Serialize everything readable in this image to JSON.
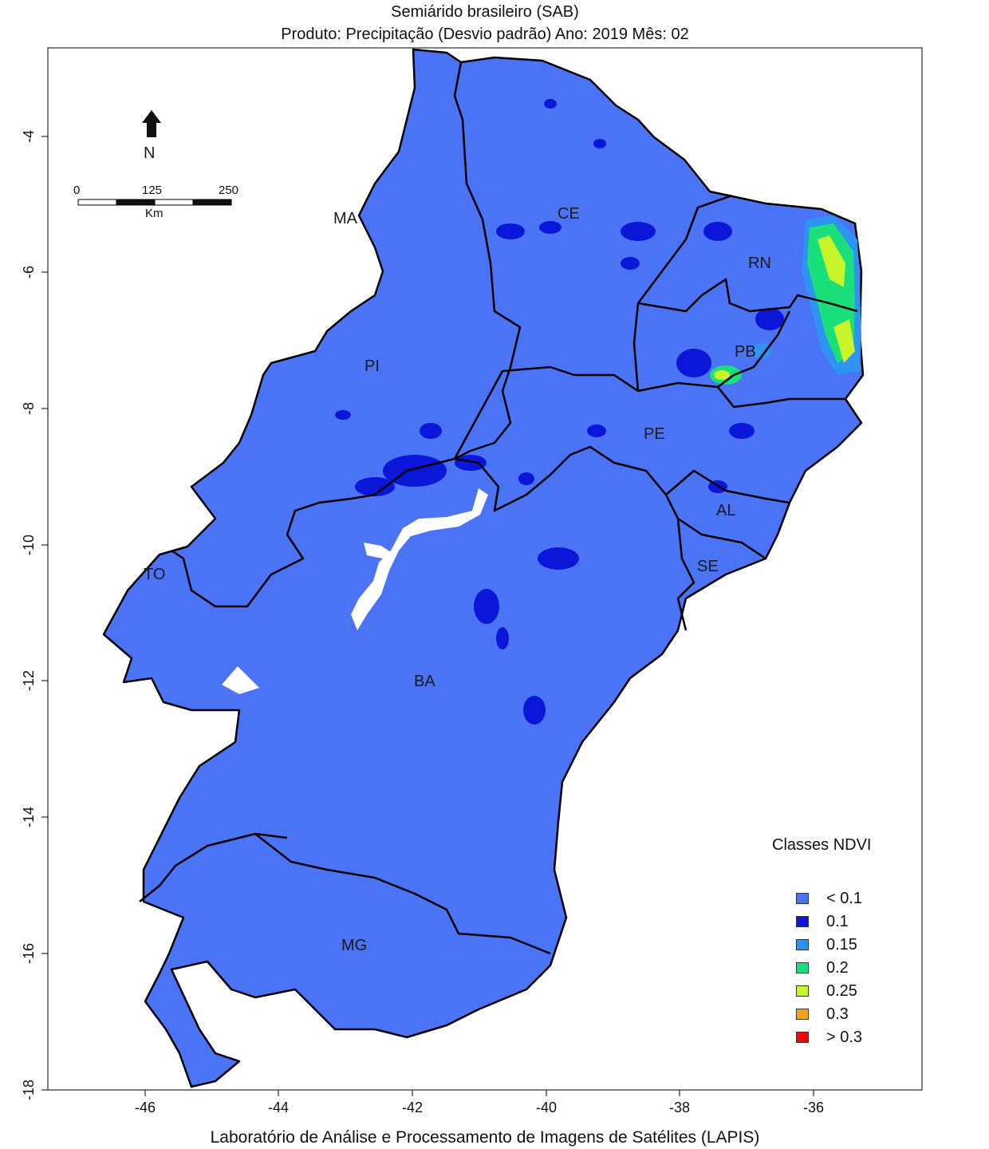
{
  "title_line1": "Semiárido brasileiro (SAB)",
  "title_line2": "Produto: Precipitação (Desvio padrão)     Ano:  2019     Mês:  02",
  "footer": "Laboratório de Análise e Processamento de Imagens de Satélites (LAPIS)",
  "x_ticks": [
    "-46",
    "-44",
    "-42",
    "-40",
    "-38",
    "-36"
  ],
  "y_ticks": [
    "-4",
    "-6",
    "-8",
    "-10",
    "-12",
    "-14",
    "-16",
    "-18"
  ],
  "north_label": "N",
  "scale": {
    "labels": [
      "0",
      "125",
      "250"
    ],
    "unit": "Km"
  },
  "states": [
    "MA",
    "CE",
    "RN",
    "PB",
    "PI",
    "PE",
    "AL",
    "SE",
    "TO",
    "BA",
    "MG"
  ],
  "legend": {
    "title": "Classes NDVI",
    "items": [
      {
        "label": "< 0.1",
        "color": "#4a73f5"
      },
      {
        "label": "0.1",
        "color": "#0a16d8"
      },
      {
        "label": "0.15",
        "color": "#2f93f2"
      },
      {
        "label": "0.2",
        "color": "#19e07a"
      },
      {
        "label": "0.25",
        "color": "#c8f52a"
      },
      {
        "label": "0.3",
        "color": "#f5a31a"
      },
      {
        "label": "> 0.3",
        "color": "#f20a0a"
      }
    ]
  },
  "colors": {
    "region_fill": "#4a73f5",
    "border": "#000000",
    "nodata": "#ffffff"
  }
}
